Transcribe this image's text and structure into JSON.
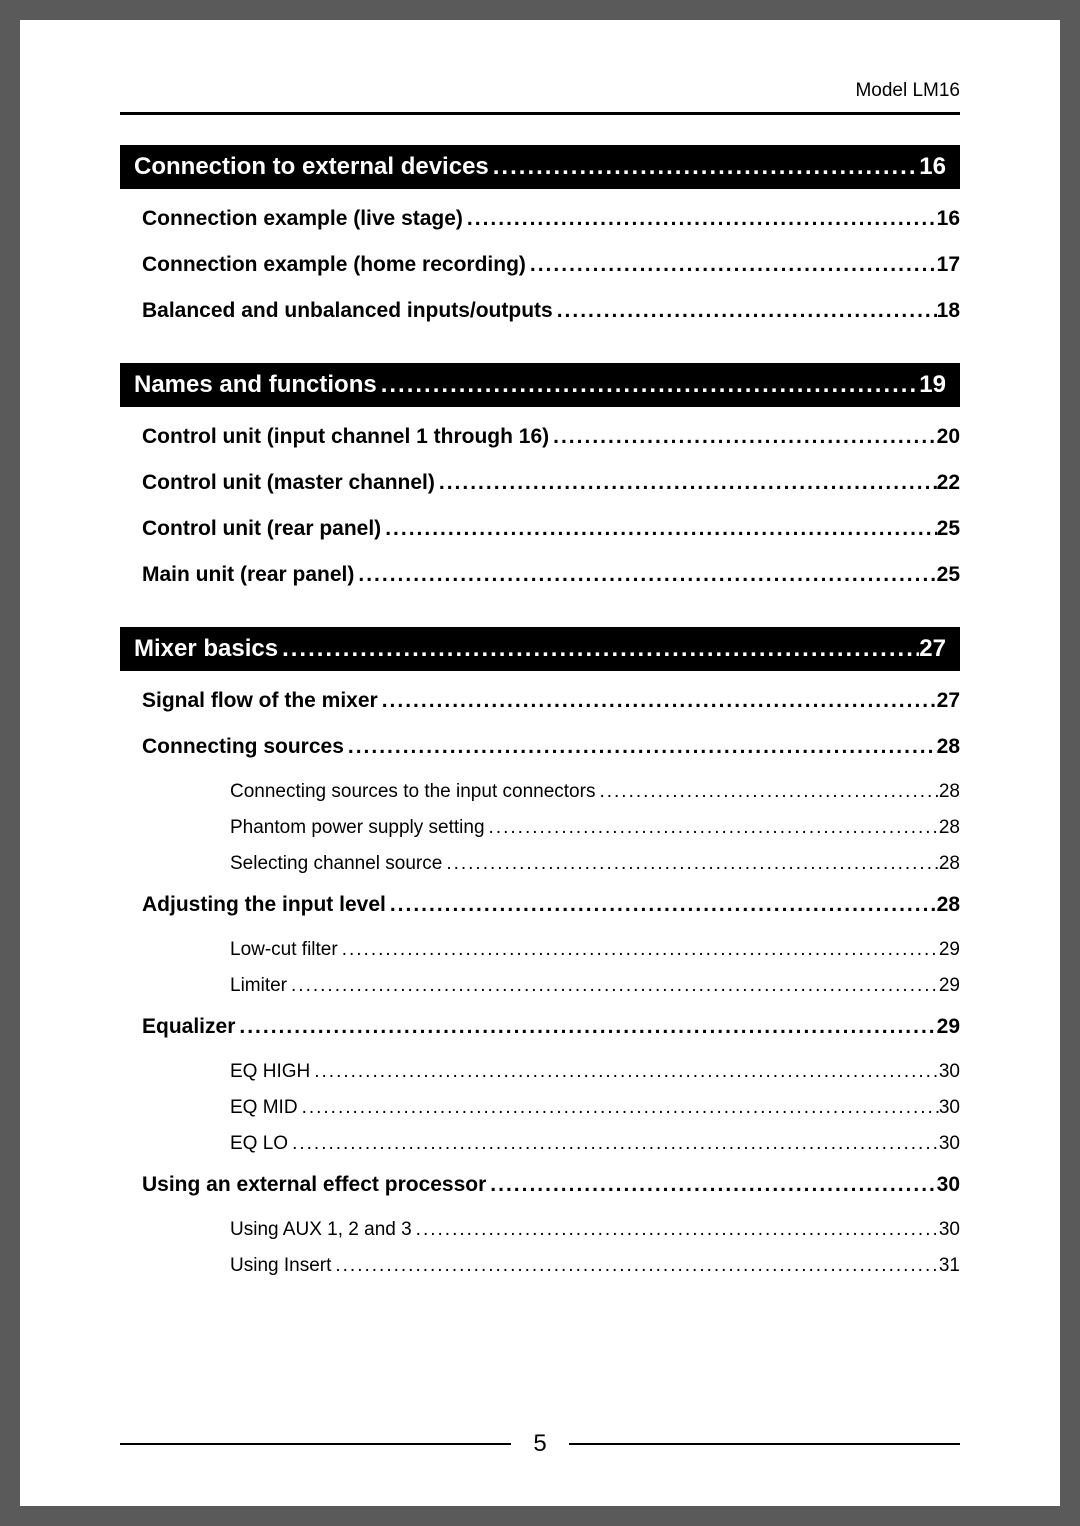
{
  "model_label": "Model LM16",
  "page_number": "5",
  "colors": {
    "header_bg": "#000000",
    "header_fg": "#ffffff",
    "text": "#000000",
    "page_bg": "#ffffff",
    "body_bg": "#5a5a5a"
  },
  "sections": [
    {
      "title": "Connection to external devices",
      "page": "16",
      "entries": [
        {
          "title": "Connection example (live stage)",
          "page": "16",
          "subs": []
        },
        {
          "title": "Connection example (home recording)",
          "page": "17",
          "subs": []
        },
        {
          "title": "Balanced and unbalanced inputs/outputs",
          "page": "18",
          "subs": []
        }
      ]
    },
    {
      "title": "Names and functions",
      "page": "19",
      "entries": [
        {
          "title": "Control unit (input channel 1 through 16)",
          "page": "20",
          "subs": []
        },
        {
          "title": "Control unit (master channel)",
          "page": "22",
          "subs": []
        },
        {
          "title": "Control unit (rear panel)",
          "page": "25",
          "subs": []
        },
        {
          "title": "Main unit (rear panel)",
          "page": "25",
          "subs": []
        }
      ]
    },
    {
      "title": "Mixer basics",
      "page": "27",
      "entries": [
        {
          "title": "Signal flow of the mixer",
          "page": "27",
          "subs": []
        },
        {
          "title": "Connecting sources",
          "page": "28",
          "subs": [
            {
              "title": "Connecting sources to the input connectors",
              "page": "28"
            },
            {
              "title": "Phantom power supply setting",
              "page": "28"
            },
            {
              "title": "Selecting channel source",
              "page": "28"
            }
          ]
        },
        {
          "title": "Adjusting the input level",
          "page": "28",
          "subs": [
            {
              "title": "Low-cut filter",
              "page": "29"
            },
            {
              "title": "Limiter",
              "page": "29"
            }
          ]
        },
        {
          "title": "Equalizer",
          "page": "29",
          "subs": [
            {
              "title": "EQ HIGH",
              "page": "30"
            },
            {
              "title": "EQ MID",
              "page": "30"
            },
            {
              "title": "EQ LO",
              "page": "30"
            }
          ]
        },
        {
          "title": "Using an external effect processor",
          "page": "30",
          "subs": [
            {
              "title": "Using AUX 1, 2 and 3",
              "page": "30"
            },
            {
              "title": "Using Insert",
              "page": "31"
            }
          ]
        }
      ]
    }
  ]
}
